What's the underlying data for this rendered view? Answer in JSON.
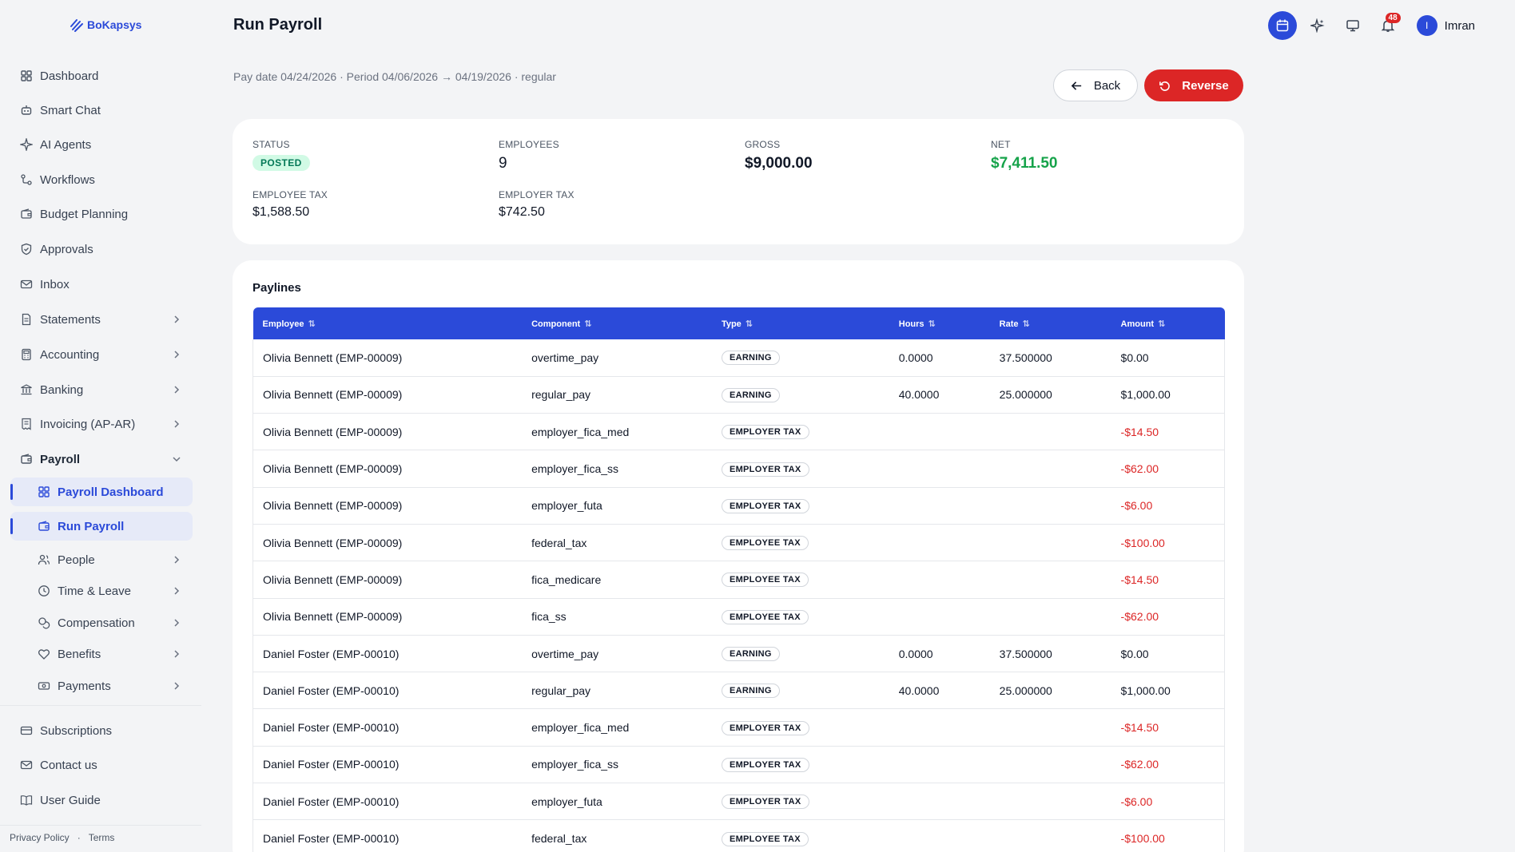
{
  "brand": {
    "name": "BoKapsys"
  },
  "sidebar": {
    "items": [
      {
        "label": "Dashboard",
        "icon": "grid-icon"
      },
      {
        "label": "Smart Chat",
        "icon": "robot-icon"
      },
      {
        "label": "AI Agents",
        "icon": "sparkle-icon"
      },
      {
        "label": "Workflows",
        "icon": "workflow-icon"
      },
      {
        "label": "Budget Planning",
        "icon": "wallet-icon"
      },
      {
        "label": "Approvals",
        "icon": "shield-check-icon"
      },
      {
        "label": "Inbox",
        "icon": "mail-icon"
      },
      {
        "label": "Statements",
        "icon": "document-icon"
      },
      {
        "label": "Accounting",
        "icon": "calculator-icon"
      },
      {
        "label": "Banking",
        "icon": "bank-icon"
      },
      {
        "label": "Invoicing (AP-AR)",
        "icon": "receipt-icon"
      },
      {
        "label": "Payroll",
        "icon": "wallet-icon"
      }
    ],
    "payroll_sub": [
      {
        "label": "Payroll Dashboard",
        "icon": "grid-icon"
      },
      {
        "label": "Run Payroll",
        "icon": "wallet-icon"
      },
      {
        "label": "People",
        "icon": "people-icon"
      },
      {
        "label": "Time & Leave",
        "icon": "clock-icon"
      },
      {
        "label": "Compensation",
        "icon": "coins-icon"
      },
      {
        "label": "Benefits",
        "icon": "heart-icon"
      },
      {
        "label": "Payments",
        "icon": "cash-icon"
      }
    ],
    "bottom": [
      {
        "label": "Subscriptions",
        "icon": "card-icon"
      },
      {
        "label": "Contact us",
        "icon": "mail-icon"
      },
      {
        "label": "User Guide",
        "icon": "book-icon"
      }
    ],
    "footer": {
      "privacy": "Privacy Policy",
      "sep": "·",
      "terms": "Terms"
    }
  },
  "header": {
    "title": "Run Payroll",
    "notifications_count": "48",
    "user_initial": "I",
    "user_name": "Imran"
  },
  "run": {
    "subtitle": "Pay date 04/24/2026 · Period 04/06/2026 → 04/19/2026 · regular",
    "back_label": "Back",
    "reverse_label": "Reverse"
  },
  "summary": {
    "status_label": "STATUS",
    "status": "POSTED",
    "employees_label": "EMPLOYEES",
    "employees": "9",
    "gross_label": "GROSS",
    "gross": "$9,000.00",
    "net_label": "NET",
    "net": "$7,411.50",
    "employee_tax_label": "EMPLOYEE TAX",
    "employee_tax": "$1,588.50",
    "employer_tax_label": "EMPLOYER TAX",
    "employer_tax": "$742.50"
  },
  "paylines": {
    "title": "Paylines",
    "columns": [
      "Employee",
      "Component",
      "Type",
      "Hours",
      "Rate",
      "Amount"
    ],
    "rows": [
      [
        "Olivia Bennett (EMP-00009)",
        "overtime_pay",
        "EARNING",
        "0.0000",
        "37.500000",
        "$0.00"
      ],
      [
        "Olivia Bennett (EMP-00009)",
        "regular_pay",
        "EARNING",
        "40.0000",
        "25.000000",
        "$1,000.00"
      ],
      [
        "Olivia Bennett (EMP-00009)",
        "employer_fica_med",
        "EMPLOYER TAX",
        "",
        "",
        "-$14.50"
      ],
      [
        "Olivia Bennett (EMP-00009)",
        "employer_fica_ss",
        "EMPLOYER TAX",
        "",
        "",
        "-$62.00"
      ],
      [
        "Olivia Bennett (EMP-00009)",
        "employer_futa",
        "EMPLOYER TAX",
        "",
        "",
        "-$6.00"
      ],
      [
        "Olivia Bennett (EMP-00009)",
        "federal_tax",
        "EMPLOYEE TAX",
        "",
        "",
        "-$100.00"
      ],
      [
        "Olivia Bennett (EMP-00009)",
        "fica_medicare",
        "EMPLOYEE TAX",
        "",
        "",
        "-$14.50"
      ],
      [
        "Olivia Bennett (EMP-00009)",
        "fica_ss",
        "EMPLOYEE TAX",
        "",
        "",
        "-$62.00"
      ],
      [
        "Daniel Foster (EMP-00010)",
        "overtime_pay",
        "EARNING",
        "0.0000",
        "37.500000",
        "$0.00"
      ],
      [
        "Daniel Foster (EMP-00010)",
        "regular_pay",
        "EARNING",
        "40.0000",
        "25.000000",
        "$1,000.00"
      ],
      [
        "Daniel Foster (EMP-00010)",
        "employer_fica_med",
        "EMPLOYER TAX",
        "",
        "",
        "-$14.50"
      ],
      [
        "Daniel Foster (EMP-00010)",
        "employer_fica_ss",
        "EMPLOYER TAX",
        "",
        "",
        "-$62.00"
      ],
      [
        "Daniel Foster (EMP-00010)",
        "employer_futa",
        "EMPLOYER TAX",
        "",
        "",
        "-$6.00"
      ],
      [
        "Daniel Foster (EMP-00010)",
        "federal_tax",
        "EMPLOYEE TAX",
        "",
        "",
        "-$100.00"
      ]
    ]
  },
  "colors": {
    "accent": "#2b4ad9",
    "danger": "#dc2626",
    "success": "#16a34a"
  }
}
